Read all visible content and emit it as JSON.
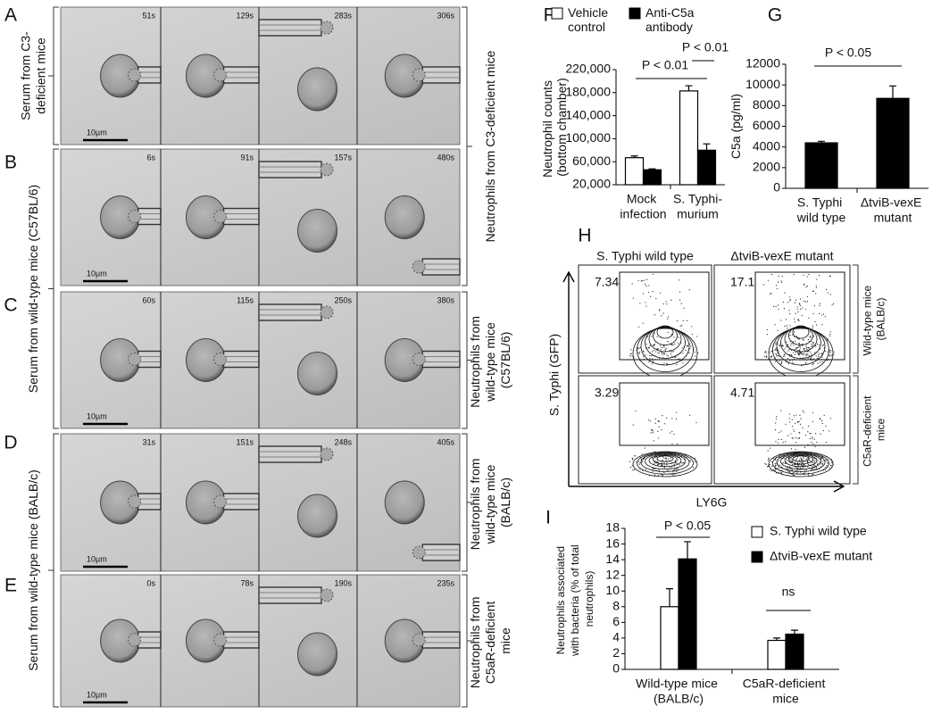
{
  "figure": {
    "panel_labels": [
      "A",
      "B",
      "C",
      "D",
      "E",
      "F",
      "G",
      "H",
      "I"
    ],
    "microscopy": {
      "rows": [
        {
          "times": [
            "51s",
            "129s",
            "283s",
            "306s"
          ],
          "scale": "10µm"
        },
        {
          "times": [
            "6s",
            "91s",
            "157s",
            "480s"
          ],
          "scale": "10µm"
        },
        {
          "times": [
            "60s",
            "115s",
            "250s",
            "380s"
          ],
          "scale": "10µm"
        },
        {
          "times": [
            "31s",
            "151s",
            "248s",
            "405s"
          ],
          "scale": "10µm"
        },
        {
          "times": [
            "0s",
            "78s",
            "190s",
            "235s"
          ],
          "scale": "10µm"
        }
      ],
      "left_labels": [
        "Serum from C3-deficient mice",
        "Serum from wild-type mice (C57BL/6)",
        "Serum from wild-type mice (BALB/c)"
      ],
      "right_labels": [
        "Neutrophils from C3-deficient mice",
        "Neutrophils from wild-type mice (C57BL/6)",
        "Neutrophils from wild-type mice (BALB/c)",
        "Neutrophils from C5aR-deficient mice"
      ]
    },
    "flow": {
      "columns": [
        "S. Typhi wild type",
        "ΔtviB-vexE mutant"
      ],
      "rows": [
        "Wild-type mice (BALB/c)",
        "C5aR-deficient mice"
      ],
      "gates": [
        [
          7.34,
          17.1
        ],
        [
          3.29,
          4.71
        ]
      ],
      "y_label": "S. Typhi (GFP)",
      "x_label": "LY6G"
    }
  },
  "chart_data": [
    {
      "type": "bar",
      "y_label": "Neutrophil counts (bottom chamber)",
      "categories": [
        "Mock infection",
        "S. Typhi-murium"
      ],
      "ylim": [
        20000,
        220000
      ],
      "yticks": [
        {
          "value": 20000,
          "label": "20,000"
        },
        {
          "value": 60000,
          "label": "60,000"
        },
        {
          "value": 100000,
          "label": "100,000"
        },
        {
          "value": 140000,
          "label": "140,000"
        },
        {
          "value": 180000,
          "label": "180,000"
        },
        {
          "value": 220000,
          "label": "220,000"
        }
      ],
      "series": [
        {
          "name": "Vehicle control",
          "color": "#ffffff",
          "values": [
            67000,
            183000
          ],
          "errors": [
            3000,
            9000
          ]
        },
        {
          "name": "Anti-C5a antibody",
          "color": "#000000",
          "values": [
            46000,
            80000
          ],
          "errors": [
            1500,
            11000
          ]
        }
      ],
      "annotations": [
        "P < 0.01",
        "P < 0.01"
      ]
    },
    {
      "type": "bar",
      "y_label": "C5a (pg/ml)",
      "categories": [
        "S. Typhi wild type",
        "ΔtviB-vexE mutant"
      ],
      "ylim": [
        0,
        12000
      ],
      "yticks": [
        0,
        2000,
        4000,
        6000,
        8000,
        10000,
        12000
      ],
      "series": [
        {
          "color": "#000000",
          "values": [
            4400,
            8700
          ],
          "errors": [
            150,
            1200
          ]
        }
      ],
      "annotations": [
        "P < 0.05"
      ]
    },
    {
      "type": "bar",
      "y_label": "Neutrophils associated with bacteria (% of total neutrophils)",
      "categories": [
        "Wild-type mice (BALB/c)",
        "C5aR-deficient mice"
      ],
      "ylim": [
        0,
        18
      ],
      "yticks": [
        0,
        2,
        4,
        6,
        8,
        10,
        12,
        14,
        16,
        18
      ],
      "series": [
        {
          "name": "S. Typhi wild type",
          "color": "#ffffff",
          "values": [
            8.0,
            3.7
          ],
          "errors": [
            2.3,
            0.3
          ]
        },
        {
          "name": "ΔtviB-vexE mutant",
          "color": "#000000",
          "values": [
            14.1,
            4.5
          ],
          "errors": [
            2.2,
            0.5
          ]
        }
      ],
      "annotations": [
        "P < 0.05",
        "ns"
      ]
    }
  ]
}
